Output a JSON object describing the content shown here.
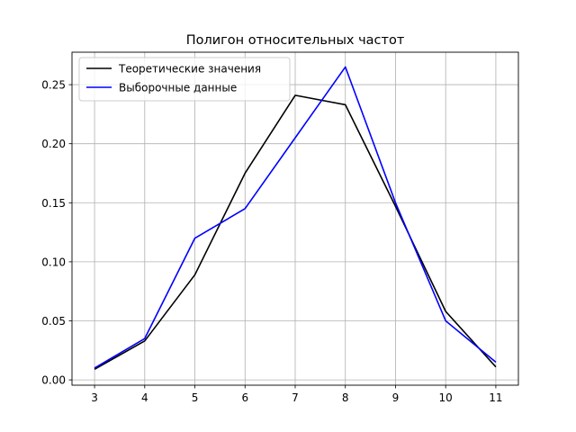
{
  "chart_data": {
    "type": "line",
    "title": "Полигон относительных частот",
    "xlabel": "",
    "ylabel": "",
    "x": [
      3,
      4,
      5,
      6,
      7,
      8,
      9,
      10,
      11
    ],
    "xlim": [
      2.55,
      11.45
    ],
    "ylim": [
      -0.0045,
      0.2775
    ],
    "xticks": [
      "3",
      "4",
      "5",
      "6",
      "7",
      "8",
      "9",
      "10",
      "11"
    ],
    "yticks": [
      {
        "value": 0.0,
        "label": "0.00"
      },
      {
        "value": 0.05,
        "label": "0.05"
      },
      {
        "value": 0.1,
        "label": "0.10"
      },
      {
        "value": 0.15,
        "label": "0.15"
      },
      {
        "value": 0.2,
        "label": "0.20"
      },
      {
        "value": 0.25,
        "label": "0.25"
      }
    ],
    "grid": true,
    "legend_position": "top-left",
    "series": [
      {
        "name": "Теоретические значения",
        "color": "#000000",
        "values": [
          0.009,
          0.033,
          0.089,
          0.175,
          0.241,
          0.233,
          0.147,
          0.058,
          0.011
        ]
      },
      {
        "name": "Выборочные данные",
        "color": "#0000ff",
        "values": [
          0.01,
          0.035,
          0.12,
          0.145,
          0.205,
          0.265,
          0.15,
          0.05,
          0.015
        ]
      }
    ]
  }
}
